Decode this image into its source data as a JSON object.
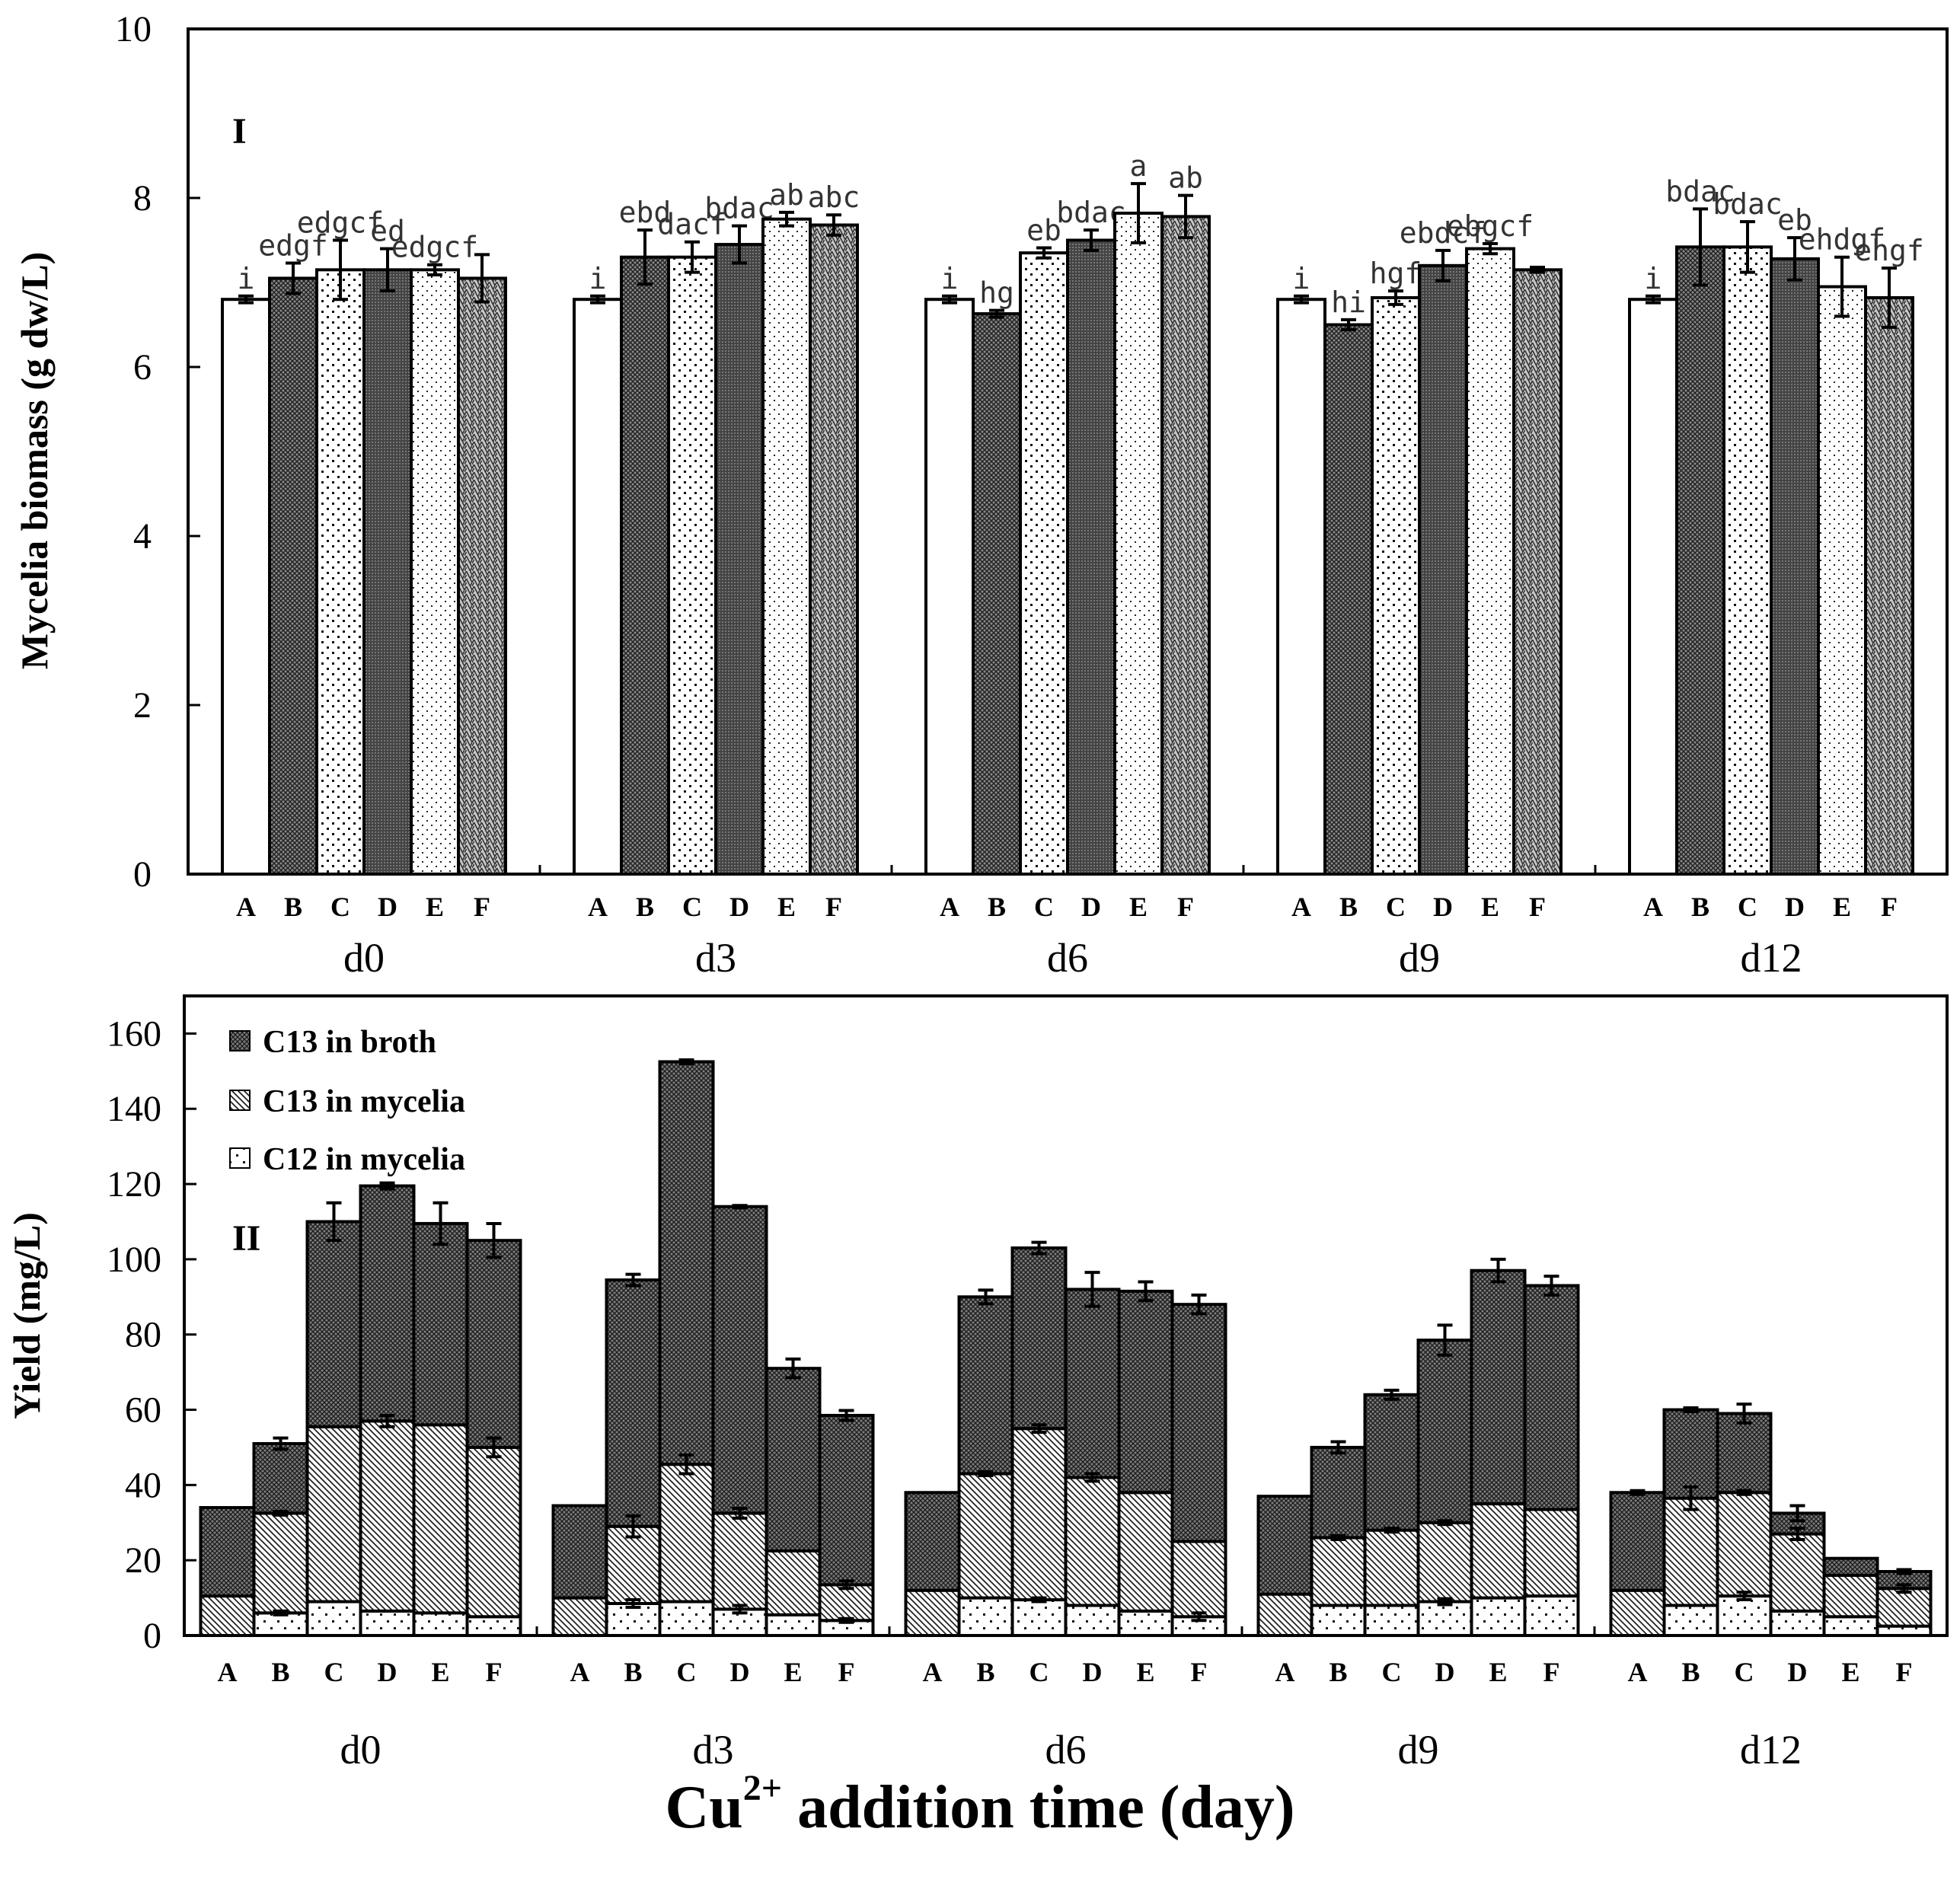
{
  "figure": {
    "xlabel_main": "Cu",
    "xlabel_sup": "2+",
    "xlabel_rest": " addition time (day)"
  },
  "styles": {
    "A": "white",
    "B": "dense-crosshatch",
    "C": "sparse-dots",
    "D": "dense-dark",
    "E": "fine-dots",
    "F": "zigzag"
  },
  "chart_data": [
    {
      "type": "bar",
      "panel": "I",
      "ylabel": "Mycelia biomass (g dw/L)",
      "ylim": [
        0,
        10
      ],
      "yticks": [
        "0",
        "2",
        "4",
        "6",
        "8",
        "10"
      ],
      "groups": [
        "d0",
        "d3",
        "d6",
        "d9",
        "d12"
      ],
      "categories": [
        "A",
        "B",
        "C",
        "D",
        "E",
        "F"
      ],
      "values": [
        [
          6.8,
          7.05,
          7.15,
          7.15,
          7.15,
          7.05
        ],
        [
          6.8,
          7.3,
          7.3,
          7.45,
          7.75,
          7.68
        ],
        [
          6.8,
          6.63,
          7.35,
          7.5,
          7.82,
          7.78
        ],
        [
          6.8,
          6.5,
          6.82,
          7.2,
          7.4,
          7.15
        ],
        [
          6.8,
          7.42,
          7.42,
          7.28,
          6.95,
          6.82
        ]
      ],
      "errors": [
        [
          0.04,
          0.18,
          0.35,
          0.25,
          0.06,
          0.28
        ],
        [
          0.04,
          0.32,
          0.18,
          0.22,
          0.08,
          0.12
        ],
        [
          0.04,
          0.04,
          0.06,
          0.12,
          0.35,
          0.25
        ],
        [
          0.04,
          0.06,
          0.08,
          0.18,
          0.06,
          0.03
        ],
        [
          0.04,
          0.45,
          0.3,
          0.25,
          0.35,
          0.35
        ]
      ],
      "letters": [
        [
          "i",
          "edgf",
          "edgcf",
          "ed",
          "edgcf",
          ""
        ],
        [
          "i",
          "ebd",
          "dacf",
          "bdac",
          "ab",
          "abc"
        ],
        [
          "i",
          "hg",
          "eb",
          "bdac",
          "a",
          "ab"
        ],
        [
          "i",
          "hi",
          "hgf",
          "ebdcf",
          "ebgcf",
          ""
        ],
        [
          "i",
          "bdac",
          "bdac",
          "eb",
          "ehdgf",
          "ehgf"
        ]
      ]
    },
    {
      "type": "bar",
      "stacked": true,
      "panel": "II",
      "ylabel": "Yield (mg/L)",
      "ylim": [
        0,
        170
      ],
      "yticks": [
        "0",
        "20",
        "40",
        "60",
        "80",
        "100",
        "120",
        "140",
        "160"
      ],
      "groups": [
        "d0",
        "d3",
        "d6",
        "d9",
        "d12"
      ],
      "categories": [
        "A",
        "B",
        "C",
        "D",
        "E",
        "F"
      ],
      "series": [
        {
          "name": "C12 in mycelia",
          "values": [
            [
              0,
              6,
              9,
              6.5,
              6,
              5
            ],
            [
              0,
              8.5,
              9,
              7,
              5.5,
              4
            ],
            [
              0,
              10,
              9.5,
              8,
              6.5,
              5
            ],
            [
              0,
              8,
              8,
              9,
              10,
              10.5
            ],
            [
              0,
              8,
              10.5,
              6.5,
              5,
              2.5
            ]
          ]
        },
        {
          "name": "C13 in mycelia",
          "values": [
            [
              10.5,
              26.5,
              46.5,
              50.5,
              50,
              45
            ],
            [
              10,
              20.5,
              36.5,
              25.5,
              17,
              9.5
            ],
            [
              12,
              33,
              45.5,
              34,
              31.5,
              20
            ],
            [
              11,
              18,
              20,
              21,
              25,
              23
            ],
            [
              12,
              28.5,
              27.5,
              20.5,
              11,
              10
            ]
          ]
        },
        {
          "name": "C13 in broth",
          "values": [
            [
              23.5,
              18.5,
              54.5,
              62.5,
              53.5,
              55
            ],
            [
              24.5,
              65.5,
              107,
              81.5,
              48.5,
              45
            ],
            [
              26,
              47,
              48,
              50,
              53.5,
              63
            ],
            [
              26,
              24,
              36,
              48.5,
              62,
              59.5
            ],
            [
              26,
              23.5,
              21,
              5.5,
              4.5,
              4.5
            ]
          ]
        }
      ],
      "totals": [
        [
          34,
          51,
          110,
          119.5,
          109.5,
          105
        ],
        [
          34.5,
          94.5,
          152.5,
          114,
          71,
          58.5
        ],
        [
          38,
          90,
          103,
          92,
          91.5,
          88
        ],
        [
          37,
          50,
          64,
          78.5,
          97,
          93
        ],
        [
          38,
          60,
          59,
          32.5,
          20.5,
          17
        ]
      ],
      "total_errors": [
        [
          0,
          1.5,
          5,
          0.8,
          5.5,
          4.5
        ],
        [
          0,
          1.5,
          0.5,
          0.3,
          2.5,
          1.3
        ],
        [
          0,
          1.8,
          1.5,
          4.5,
          2.5,
          2.5
        ],
        [
          0,
          1.5,
          1.2,
          4,
          3,
          2.5
        ],
        [
          0.5,
          0.5,
          2.5,
          2,
          0,
          0.5
        ]
      ],
      "myc_errors": [
        [
          0,
          0.5,
          0,
          1.5,
          0,
          2.5
        ],
        [
          0,
          2.8,
          2.5,
          1.3,
          0,
          1
        ],
        [
          0,
          0.5,
          1,
          1,
          0,
          0
        ],
        [
          0,
          0.5,
          0.5,
          0.5,
          0,
          0
        ],
        [
          0,
          3,
          0.5,
          1.5,
          0,
          1
        ]
      ],
      "c12_errors": [
        [
          0,
          0.5,
          0,
          0,
          0,
          0
        ],
        [
          0,
          1,
          0,
          1,
          0,
          0.5
        ],
        [
          0,
          0,
          0.5,
          0,
          0,
          1
        ],
        [
          0,
          0,
          0,
          0.8,
          0,
          0
        ],
        [
          0,
          0,
          1,
          0,
          0,
          0
        ]
      ],
      "legend": [
        "C13 in broth",
        "C13 in mycelia",
        "C12 in mycelia"
      ]
    }
  ]
}
